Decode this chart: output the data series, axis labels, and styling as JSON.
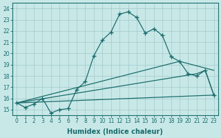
{
  "xlabel": "Humidex (Indice chaleur)",
  "bg_color": "#c8e8e8",
  "line_color": "#1a6b6b",
  "grid_color": "#a0c8c8",
  "xlim": [
    -0.5,
    23.5
  ],
  "ylim": [
    14.5,
    24.5
  ],
  "yticks": [
    15,
    16,
    17,
    18,
    19,
    20,
    21,
    22,
    23,
    24
  ],
  "xticks": [
    0,
    1,
    2,
    3,
    4,
    5,
    6,
    7,
    8,
    9,
    10,
    11,
    12,
    13,
    14,
    15,
    16,
    17,
    18,
    19,
    20,
    21,
    22,
    23
  ],
  "main_line": {
    "x": [
      0,
      1,
      2,
      3,
      4,
      5,
      6,
      7,
      8,
      9,
      10,
      11,
      12,
      13,
      14,
      15,
      16,
      17,
      18,
      19,
      20,
      21,
      22,
      23
    ],
    "y": [
      15.6,
      15.2,
      15.5,
      16.0,
      14.7,
      15.0,
      15.1,
      16.8,
      17.5,
      19.8,
      21.2,
      21.9,
      23.5,
      23.7,
      23.2,
      21.8,
      22.2,
      21.6,
      19.7,
      19.3,
      18.2,
      18.0,
      18.5,
      16.3
    ]
  },
  "flat_line": {
    "x": [
      0,
      23
    ],
    "y": [
      15.6,
      16.3
    ]
  },
  "mid_line": {
    "x": [
      0,
      19,
      23
    ],
    "y": [
      15.6,
      19.3,
      18.5
    ]
  },
  "diag_line": {
    "x": [
      0,
      21,
      22,
      23
    ],
    "y": [
      15.6,
      18.2,
      18.5,
      16.3
    ]
  }
}
